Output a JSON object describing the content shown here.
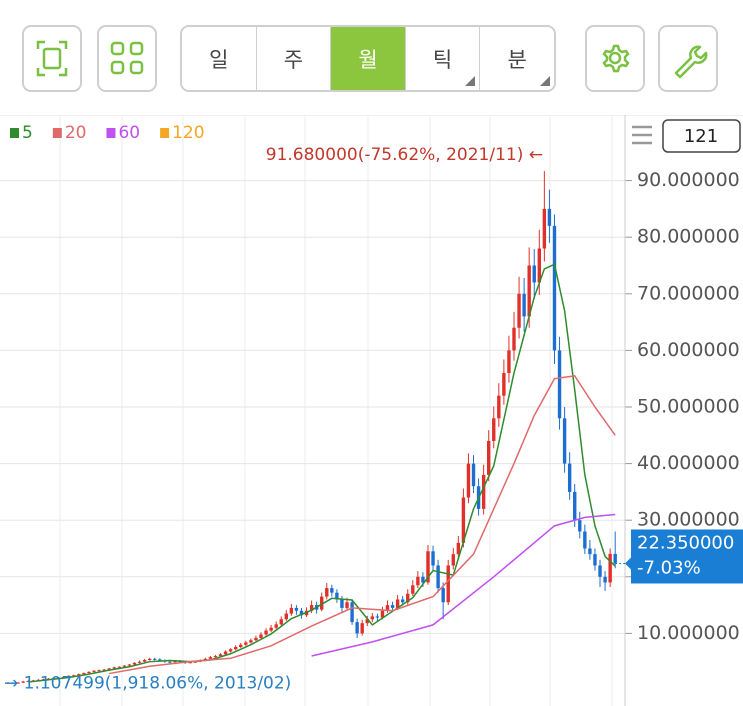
{
  "toolbar": {
    "periods": [
      "일",
      "주",
      "월",
      "틱",
      "분"
    ],
    "active": 2,
    "submenu": [
      3,
      4
    ]
  },
  "chart_data": {
    "type": "candlestick",
    "ylim": [
      -2.83,
      101.59
    ],
    "yticks": [
      {
        "value": 10,
        "label": "10.000000"
      },
      {
        "value": 20,
        "label": "20.000000"
      },
      {
        "value": 30,
        "label": "30.000000"
      },
      {
        "value": 40,
        "label": "40.000000"
      },
      {
        "value": 50,
        "label": "50.000000"
      },
      {
        "value": 60,
        "label": "60.000000"
      },
      {
        "value": 70,
        "label": "70.000000"
      },
      {
        "value": 80,
        "label": "80.000000"
      },
      {
        "value": 90,
        "label": "90.000000"
      }
    ],
    "grid": true,
    "up_color": "#e0302a",
    "down_color": "#1c6fd1",
    "count": "121",
    "series": [
      {
        "name": "5",
        "color": "#2e8b2e",
        "x": [
          4,
          8,
          12,
          16,
          20,
          24,
          28,
          32,
          36,
          40,
          44,
          48,
          52,
          56,
          60,
          64,
          68,
          72,
          76,
          80,
          84,
          88,
          92,
          96,
          100,
          104,
          106,
          108,
          110,
          112,
          114,
          116,
          118,
          120
        ],
        "values": [
          1.4,
          1.8,
          2.2,
          2.8,
          3.5,
          4.1,
          5.0,
          5.2,
          5.0,
          5.3,
          6.4,
          8.0,
          9.9,
          12.6,
          14.1,
          16.2,
          15.9,
          11.5,
          13.9,
          16.3,
          21.1,
          20.3,
          32.0,
          39.6,
          56.0,
          69.4,
          74.4,
          75.2,
          67.0,
          53.0,
          38.0,
          29.0,
          23.6,
          21.9
        ]
      },
      {
        "name": "20",
        "color": "#e06a6a",
        "x": [
          20,
          28,
          36,
          44,
          52,
          60,
          68,
          76,
          84,
          92,
          100,
          104,
          108,
          112,
          116,
          120
        ],
        "values": [
          2.9,
          4.2,
          5.0,
          5.6,
          7.8,
          11.3,
          14.5,
          14.0,
          16.5,
          24.0,
          40.0,
          48.5,
          55.0,
          55.5,
          50.0,
          45.0
        ]
      },
      {
        "name": "60",
        "color": "#c050f0",
        "x": [
          60,
          72,
          84,
          96,
          108,
          114,
          120
        ],
        "values": [
          6.0,
          8.5,
          11.5,
          20.0,
          29.0,
          30.5,
          31.0
        ]
      },
      {
        "name": "120",
        "color": "#f5a623"
      }
    ],
    "candles": [
      [
        1.2,
        1.4,
        1.15,
        1.3
      ],
      [
        1.3,
        1.35,
        1.107499,
        1.2
      ],
      [
        1.2,
        1.4,
        1.15,
        1.3
      ],
      [
        1.3,
        1.6,
        1.25,
        1.5
      ],
      [
        1.5,
        1.7,
        1.45,
        1.6
      ],
      [
        1.6,
        1.8,
        1.55,
        1.7
      ],
      [
        1.7,
        1.9,
        1.65,
        1.8
      ],
      [
        1.8,
        2.0,
        1.75,
        1.9
      ],
      [
        1.9,
        2.1,
        1.85,
        2.0
      ],
      [
        2.0,
        2.2,
        1.95,
        2.1
      ],
      [
        2.1,
        2.3,
        2.05,
        2.2
      ],
      [
        2.2,
        2.4,
        2.15,
        2.3
      ],
      [
        2.3,
        2.6,
        2.2,
        2.5
      ],
      [
        2.5,
        2.7,
        2.4,
        2.6
      ],
      [
        2.6,
        2.9,
        2.5,
        2.8
      ],
      [
        2.8,
        3.1,
        2.7,
        3.0
      ],
      [
        3.0,
        3.3,
        2.9,
        3.2
      ],
      [
        3.2,
        3.5,
        3.1,
        3.4
      ],
      [
        3.4,
        3.6,
        3.3,
        3.5
      ],
      [
        3.5,
        3.7,
        3.4,
        3.6
      ],
      [
        3.6,
        3.9,
        3.5,
        3.8
      ],
      [
        3.8,
        4.1,
        3.7,
        4.0
      ],
      [
        4.0,
        4.2,
        3.9,
        4.1
      ],
      [
        4.1,
        4.4,
        4.0,
        4.3
      ],
      [
        4.3,
        4.6,
        4.2,
        4.5
      ],
      [
        4.5,
        4.9,
        4.4,
        4.8
      ],
      [
        4.8,
        5.2,
        4.7,
        5.0
      ],
      [
        5.0,
        5.5,
        4.9,
        5.3
      ],
      [
        5.3,
        5.7,
        5.2,
        5.5
      ],
      [
        5.5,
        5.7,
        5.2,
        5.4
      ],
      [
        5.4,
        5.6,
        5.0,
        5.2
      ],
      [
        5.2,
        5.4,
        4.8,
        5.0
      ],
      [
        5.0,
        5.2,
        4.7,
        4.9
      ],
      [
        4.9,
        5.3,
        4.8,
        5.1
      ],
      [
        5.1,
        5.3,
        4.9,
        5.0
      ],
      [
        5.0,
        5.1,
        4.6,
        4.8
      ],
      [
        4.8,
        5.1,
        4.7,
        4.9
      ],
      [
        4.9,
        5.2,
        4.8,
        5.0
      ],
      [
        5.0,
        5.4,
        4.9,
        5.2
      ],
      [
        5.2,
        5.7,
        5.1,
        5.5
      ],
      [
        5.5,
        6.0,
        5.4,
        5.8
      ],
      [
        5.8,
        6.2,
        5.7,
        6.0
      ],
      [
        6.0,
        6.5,
        5.9,
        6.3
      ],
      [
        6.3,
        7.0,
        6.2,
        6.8
      ],
      [
        6.8,
        7.4,
        6.6,
        7.2
      ],
      [
        7.2,
        7.9,
        7.0,
        7.6
      ],
      [
        7.6,
        8.3,
        7.4,
        8.0
      ],
      [
        8.0,
        8.7,
        7.8,
        8.4
      ],
      [
        8.4,
        9.1,
        8.2,
        8.8
      ],
      [
        8.8,
        9.6,
        8.6,
        9.2
      ],
      [
        9.2,
        10.2,
        9.0,
        9.8
      ],
      [
        9.8,
        10.9,
        9.6,
        10.5
      ],
      [
        10.5,
        11.5,
        10.2,
        11.0
      ],
      [
        11.0,
        12.1,
        10.7,
        11.6
      ],
      [
        11.6,
        13.0,
        11.3,
        12.5
      ],
      [
        12.5,
        14.1,
        12.2,
        13.5
      ],
      [
        13.5,
        15.2,
        13.1,
        14.5
      ],
      [
        14.5,
        15.0,
        13.3,
        14.0
      ],
      [
        14.0,
        14.5,
        12.6,
        13.2
      ],
      [
        13.2,
        14.6,
        12.9,
        14.0
      ],
      [
        14.0,
        15.8,
        13.6,
        15.0
      ],
      [
        15.0,
        15.6,
        13.5,
        14.2
      ],
      [
        14.2,
        17.2,
        13.9,
        16.5
      ],
      [
        16.5,
        18.9,
        16.0,
        18.0
      ],
      [
        18.0,
        18.6,
        16.5,
        17.2
      ],
      [
        17.2,
        17.8,
        15.4,
        16.0
      ],
      [
        16.0,
        16.6,
        13.8,
        14.5
      ],
      [
        14.5,
        16.3,
        14.0,
        15.5
      ],
      [
        15.5,
        16.0,
        11.5,
        12.0
      ],
      [
        12.0,
        12.6,
        9.2,
        10.0
      ],
      [
        10.0,
        12.4,
        9.6,
        11.8
      ],
      [
        11.8,
        13.1,
        11.3,
        12.5
      ],
      [
        12.5,
        13.6,
        12.0,
        13.0
      ],
      [
        13.0,
        13.5,
        12.2,
        12.8
      ],
      [
        12.8,
        14.7,
        12.5,
        14.0
      ],
      [
        14.0,
        15.8,
        13.6,
        15.0
      ],
      [
        15.0,
        15.6,
        13.8,
        14.5
      ],
      [
        14.5,
        16.8,
        14.1,
        16.0
      ],
      [
        16.0,
        16.6,
        14.9,
        15.5
      ],
      [
        15.5,
        17.8,
        15.1,
        17.0
      ],
      [
        17.0,
        19.4,
        16.6,
        18.5
      ],
      [
        18.5,
        21.0,
        18.0,
        20.0
      ],
      [
        20.0,
        20.8,
        18.2,
        19.0
      ],
      [
        19.0,
        25.6,
        18.6,
        24.5
      ],
      [
        24.5,
        25.5,
        21.0,
        22.0
      ],
      [
        22.0,
        23.0,
        17.2,
        18.0
      ],
      [
        18.0,
        19.0,
        12.5,
        15.5
      ],
      [
        15.5,
        23.0,
        15.0,
        22.0
      ],
      [
        22.0,
        25.1,
        21.3,
        24.0
      ],
      [
        24.0,
        27.2,
        23.2,
        26.0
      ],
      [
        26.0,
        35.6,
        25.2,
        34.0
      ],
      [
        34.0,
        41.8,
        33.0,
        40.0
      ],
      [
        40.0,
        41.5,
        34.8,
        36.0
      ],
      [
        36.0,
        37.4,
        30.8,
        32.0
      ],
      [
        32.0,
        39.8,
        31.0,
        38.0
      ],
      [
        38.0,
        45.9,
        36.9,
        44.0
      ],
      [
        44.0,
        50.1,
        42.7,
        48.0
      ],
      [
        48.0,
        54.2,
        46.5,
        52.0
      ],
      [
        52.0,
        58.4,
        50.4,
        56.0
      ],
      [
        56.0,
        62.6,
        54.3,
        60.0
      ],
      [
        60.0,
        66.8,
        58.2,
        64.0
      ],
      [
        64.0,
        73.0,
        62.1,
        70.0
      ],
      [
        70.0,
        72.8,
        63.3,
        66.0
      ],
      [
        66.0,
        78.2,
        64.0,
        75.0
      ],
      [
        75.0,
        77.9,
        69.1,
        72.0
      ],
      [
        72.0,
        81.3,
        69.8,
        78.0
      ],
      [
        78.0,
        91.68,
        75.7,
        85.0
      ],
      [
        85.0,
        88.4,
        79.0,
        82.0
      ],
      [
        82.0,
        84.0,
        57.6,
        60.0
      ],
      [
        60.0,
        62.4,
        46.0,
        48.0
      ],
      [
        48.0,
        50.0,
        38.4,
        40.0
      ],
      [
        40.0,
        42.0,
        33.6,
        35.0
      ],
      [
        35.0,
        36.4,
        28.8,
        30.0
      ],
      [
        30.0,
        31.5,
        26.8,
        28.0
      ],
      [
        28.0,
        29.2,
        24.0,
        25.0
      ],
      [
        25.0,
        26.5,
        23.0,
        24.0
      ],
      [
        24.0,
        25.0,
        21.1,
        22.0
      ],
      [
        22.0,
        23.0,
        18.2,
        20.0
      ],
      [
        20.0,
        21.0,
        17.5,
        19.0
      ],
      [
        19.0,
        25.0,
        18.2,
        24.04
      ],
      [
        24.04,
        28.0,
        21.5,
        22.35
      ]
    ],
    "annotations": [
      {
        "text": "91.680000(-75.62%, 2021/11) ←",
        "value": 91.68,
        "color": "#c0392b"
      },
      {
        "text": "→ 1.107499(1,918.06%, 2013/02)",
        "value": 1.107499,
        "color": "#2a7fc0"
      }
    ],
    "current_price": {
      "value": 22.35,
      "label": "22.350000",
      "change": "-7.03%",
      "color": "#1a7fd4"
    }
  }
}
